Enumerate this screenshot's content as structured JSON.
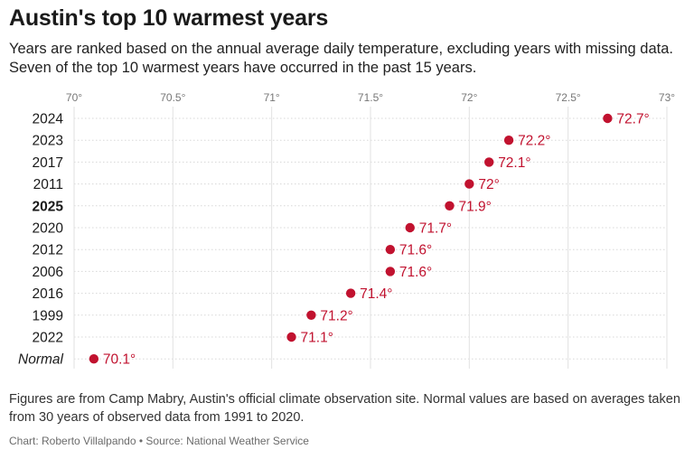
{
  "chart_data": {
    "type": "scatter",
    "title": "Austin's top 10 warmest years",
    "subtitle": "Years are ranked based on the annual average daily temperature, excluding years with missing data. Seven of the top 10 warmest years have occurred in the past 15 years.",
    "xlim": [
      70,
      73
    ],
    "x_ticks": [
      70,
      70.5,
      71,
      71.5,
      72,
      72.5,
      73
    ],
    "x_tick_labels": [
      "70°",
      "70.5°",
      "71°",
      "71.5°",
      "72°",
      "72.5°",
      "73°"
    ],
    "categories": [
      "2024",
      "2023",
      "2017",
      "2011",
      "2025",
      "2020",
      "2012",
      "2006",
      "2016",
      "1999",
      "2022",
      "Normal"
    ],
    "category_styles": [
      "normal",
      "normal",
      "normal",
      "normal",
      "bold",
      "normal",
      "normal",
      "normal",
      "normal",
      "normal",
      "normal",
      "italic"
    ],
    "values": [
      72.7,
      72.2,
      72.1,
      72,
      71.9,
      71.7,
      71.6,
      71.6,
      71.4,
      71.2,
      71.1,
      70.1
    ],
    "value_labels": [
      "72.7°",
      "72.2°",
      "72.1°",
      "72°",
      "71.9°",
      "71.7°",
      "71.6°",
      "71.6°",
      "71.4°",
      "71.2°",
      "71.1°",
      "70.1°"
    ],
    "point_color": "#c1122f",
    "grid": true
  },
  "notes": "Figures are from Camp Mabry, Austin's official climate observation site. Normal values are based on averages taken from 30 years of observed data from 1991 to 2020.",
  "credit": "Chart: Roberto Villalpando • Source: National Weather Service"
}
